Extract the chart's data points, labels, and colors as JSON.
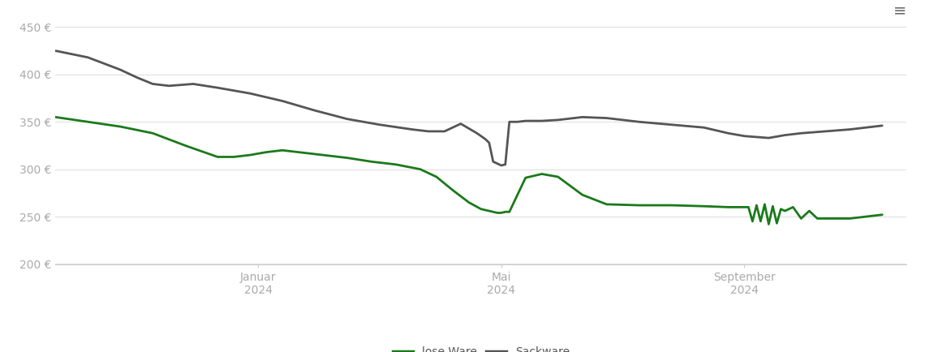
{
  "ylim": [
    200,
    460
  ],
  "yticks": [
    200,
    250,
    300,
    350,
    400,
    450
  ],
  "ylabel_format": "{} €",
  "background_color": "#ffffff",
  "grid_color": "#e0e0e0",
  "lose_ware_color": "#1a7a1a",
  "sackware_color": "#555555",
  "legend_labels": [
    "lose Ware",
    "Sackware"
  ],
  "x_tick_labels": [
    "Januar\n2024",
    "Mai\n2024",
    "September\n2024"
  ],
  "x_tick_positions": [
    0.25,
    0.55,
    0.85
  ],
  "xlim": [
    0.0,
    1.05
  ],
  "lose_ware": {
    "x": [
      0.0,
      0.04,
      0.08,
      0.12,
      0.16,
      0.2,
      0.22,
      0.24,
      0.26,
      0.28,
      0.3,
      0.33,
      0.36,
      0.39,
      0.42,
      0.45,
      0.47,
      0.49,
      0.51,
      0.525,
      0.535,
      0.54,
      0.545,
      0.55,
      0.555,
      0.56,
      0.58,
      0.6,
      0.62,
      0.65,
      0.68,
      0.72,
      0.76,
      0.8,
      0.83,
      0.84,
      0.855,
      0.86,
      0.865,
      0.87,
      0.875,
      0.88,
      0.885,
      0.89,
      0.895,
      0.9,
      0.91,
      0.92,
      0.93,
      0.94,
      0.95,
      0.96,
      0.97,
      0.98,
      1.0,
      1.02
    ],
    "y": [
      355,
      350,
      345,
      338,
      325,
      313,
      313,
      315,
      318,
      320,
      318,
      315,
      312,
      308,
      305,
      300,
      292,
      278,
      265,
      258,
      256,
      255,
      254,
      254,
      255,
      255,
      291,
      295,
      292,
      273,
      263,
      262,
      262,
      261,
      260,
      260,
      260,
      245,
      262,
      245,
      263,
      242,
      261,
      243,
      258,
      256,
      260,
      248,
      256,
      248,
      248,
      248,
      248,
      248,
      250,
      252
    ]
  },
  "sackware": {
    "x": [
      0.0,
      0.04,
      0.08,
      0.1,
      0.12,
      0.14,
      0.17,
      0.2,
      0.24,
      0.28,
      0.32,
      0.36,
      0.4,
      0.44,
      0.46,
      0.48,
      0.5,
      0.52,
      0.525,
      0.53,
      0.535,
      0.54,
      0.545,
      0.55,
      0.555,
      0.56,
      0.57,
      0.58,
      0.6,
      0.62,
      0.65,
      0.68,
      0.72,
      0.76,
      0.8,
      0.83,
      0.85,
      0.88,
      0.9,
      0.92,
      0.95,
      0.98,
      1.0,
      1.02
    ],
    "y": [
      425,
      418,
      405,
      397,
      390,
      388,
      390,
      386,
      380,
      372,
      362,
      353,
      347,
      342,
      340,
      340,
      348,
      338,
      335,
      332,
      328,
      308,
      306,
      304,
      305,
      350,
      350,
      351,
      351,
      352,
      355,
      354,
      350,
      347,
      344,
      338,
      335,
      333,
      336,
      338,
      340,
      342,
      344,
      346
    ]
  }
}
